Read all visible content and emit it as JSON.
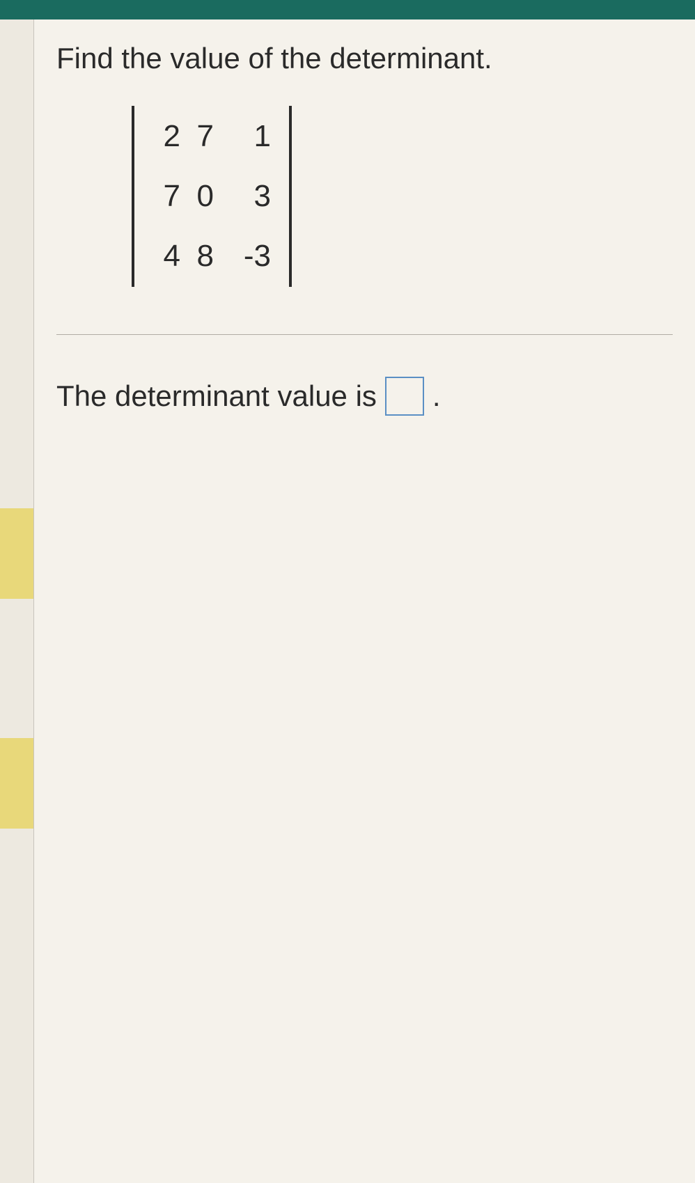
{
  "colors": {
    "topbar": "#1a6b5f",
    "background": "#e8e4dc",
    "panel": "#f5f2eb",
    "left_strip": "#ede9e0",
    "yellow_tab": "#e8d87a",
    "text": "#2a2a2a",
    "input_border": "#5a8fc4",
    "divider": "#b0aca4"
  },
  "question": {
    "prompt": "Find the value of the determinant.",
    "fontsize": 42
  },
  "matrix": {
    "type": "determinant",
    "rows": 3,
    "cols": 3,
    "data": [
      [
        "2",
        "7",
        "1"
      ],
      [
        "7",
        "0",
        "3"
      ],
      [
        "4",
        "8",
        "-3"
      ]
    ],
    "cell_fontsize": 44,
    "bracket_height": 260
  },
  "answer": {
    "label": "The determinant value is",
    "value": "",
    "period": ".",
    "fontsize": 42,
    "input_size": 56
  }
}
